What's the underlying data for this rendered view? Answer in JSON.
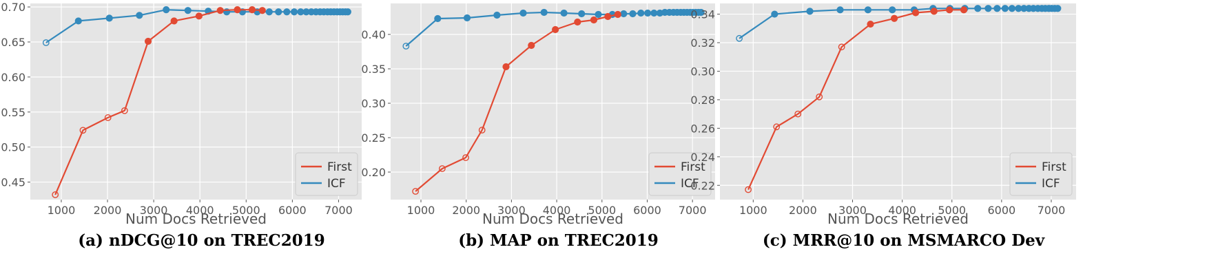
{
  "chart_data": [
    {
      "type": "line",
      "caption": "(a) nDCG@10 on TREC2019",
      "xlabel": "Num Docs Retrieved",
      "ylabel": "",
      "xlim": [
        330,
        7500
      ],
      "ylim": [
        0.425,
        0.705
      ],
      "xticks": [
        1000,
        2000,
        3000,
        4000,
        5000,
        6000,
        7000
      ],
      "yticks": [
        0.45,
        0.5,
        0.55,
        0.6,
        0.65,
        0.7
      ],
      "ytick_labels": [
        "0.45",
        "0.50",
        "0.55",
        "0.60",
        "0.65",
        "0.70"
      ],
      "legend": {
        "position": "lower-right",
        "entries": [
          "First",
          "ICF"
        ]
      },
      "series": [
        {
          "name": "First",
          "color": "#E24A33",
          "x": [
            870,
            1470,
            2010,
            2370,
            2880,
            3440,
            3980,
            4440,
            4810,
            5130,
            5350
          ],
          "y": [
            0.432,
            0.524,
            0.542,
            0.552,
            0.651,
            0.68,
            0.687,
            0.695,
            0.696,
            0.696,
            0.695
          ],
          "filled": [
            false,
            false,
            false,
            false,
            true,
            true,
            true,
            true,
            true,
            true,
            true
          ]
        },
        {
          "name": "ICF",
          "color": "#348ABD",
          "x": [
            670,
            1370,
            2040,
            2690,
            3270,
            3740,
            4180,
            4580,
            4920,
            5240,
            5500,
            5700,
            5880,
            6040,
            6180,
            6300,
            6410,
            6510,
            6600,
            6680,
            6760,
            6830,
            6900,
            6970,
            7030,
            7090,
            7150,
            7200
          ],
          "y": [
            0.649,
            0.68,
            0.684,
            0.688,
            0.696,
            0.695,
            0.694,
            0.693,
            0.693,
            0.693,
            0.693,
            0.693,
            0.693,
            0.693,
            0.693,
            0.693,
            0.693,
            0.693,
            0.693,
            0.693,
            0.693,
            0.693,
            0.693,
            0.693,
            0.693,
            0.693,
            0.693,
            0.693
          ],
          "filled": [
            false,
            true,
            true,
            true,
            true,
            true,
            true,
            true,
            true,
            true,
            true,
            true,
            true,
            true,
            true,
            true,
            true,
            true,
            true,
            true,
            true,
            true,
            true,
            true,
            true,
            true,
            true,
            true
          ]
        }
      ]
    },
    {
      "type": "line",
      "caption": "(b) MAP on TREC2019",
      "xlabel": "Num Docs Retrieved",
      "ylabel": "",
      "xlim": [
        330,
        7500
      ],
      "ylim": [
        0.16,
        0.445
      ],
      "xticks": [
        1000,
        2000,
        3000,
        4000,
        5000,
        6000,
        7000
      ],
      "yticks": [
        0.2,
        0.25,
        0.3,
        0.35,
        0.4
      ],
      "ytick_labels": [
        "0.20",
        "0.25",
        "0.30",
        "0.35",
        "0.40"
      ],
      "legend": {
        "position": "lower-right",
        "entries": [
          "First",
          "ICF"
        ]
      },
      "series": [
        {
          "name": "First",
          "color": "#E24A33",
          "x": [
            880,
            1470,
            1990,
            2350,
            2880,
            3440,
            3970,
            4460,
            4820,
            5130,
            5350
          ],
          "y": [
            0.172,
            0.205,
            0.221,
            0.261,
            0.353,
            0.384,
            0.407,
            0.418,
            0.421,
            0.426,
            0.429
          ],
          "filled": [
            false,
            false,
            false,
            false,
            true,
            true,
            true,
            true,
            true,
            true,
            true
          ]
        },
        {
          "name": "ICF",
          "color": "#348ABD",
          "x": [
            670,
            1370,
            2020,
            2680,
            3260,
            3720,
            4160,
            4550,
            4920,
            5230,
            5480,
            5680,
            5860,
            6010,
            6150,
            6280,
            6390,
            6490,
            6580,
            6660,
            6740,
            6810,
            6880,
            6950,
            7010,
            7070,
            7130,
            7190
          ],
          "y": [
            0.383,
            0.423,
            0.424,
            0.428,
            0.431,
            0.432,
            0.431,
            0.43,
            0.429,
            0.429,
            0.43,
            0.43,
            0.431,
            0.431,
            0.431,
            0.431,
            0.432,
            0.432,
            0.432,
            0.432,
            0.432,
            0.432,
            0.432,
            0.432,
            0.432,
            0.432,
            0.432,
            0.432
          ],
          "filled": [
            false,
            true,
            true,
            true,
            true,
            true,
            true,
            true,
            true,
            true,
            true,
            true,
            true,
            true,
            true,
            true,
            true,
            true,
            true,
            true,
            true,
            true,
            true,
            true,
            true,
            true,
            true,
            true
          ]
        }
      ]
    },
    {
      "type": "line",
      "caption": "(c) MRR@10 on MSMARCO Dev",
      "xlabel": "Num Docs Retrieved",
      "ylabel": "",
      "xlim": [
        330,
        7500
      ],
      "ylim": [
        0.21,
        0.3475
      ],
      "xticks": [
        1000,
        2000,
        3000,
        4000,
        5000,
        6000,
        7000
      ],
      "yticks": [
        0.22,
        0.24,
        0.26,
        0.28,
        0.3,
        0.32,
        0.34
      ],
      "ytick_labels": [
        "0.22",
        "0.24",
        "0.26",
        "0.28",
        "0.30",
        "0.32",
        "0.34"
      ],
      "legend": {
        "position": "lower-right",
        "entries": [
          "First",
          "ICF"
        ]
      },
      "series": [
        {
          "name": "First",
          "color": "#E24A33",
          "x": [
            900,
            1470,
            1900,
            2330,
            2780,
            3360,
            3840,
            4270,
            4640,
            4950,
            5240
          ],
          "y": [
            0.217,
            0.261,
            0.27,
            0.282,
            0.317,
            0.333,
            0.337,
            0.341,
            0.342,
            0.343,
            0.343
          ],
          "filled": [
            false,
            false,
            false,
            false,
            false,
            true,
            true,
            true,
            true,
            true,
            true
          ]
        },
        {
          "name": "ICF",
          "color": "#348ABD",
          "x": [
            720,
            1430,
            2140,
            2750,
            3310,
            3800,
            4240,
            4620,
            4960,
            5260,
            5520,
            5730,
            5910,
            6070,
            6210,
            6340,
            6450,
            6550,
            6640,
            6730,
            6810,
            6880,
            6950,
            7010,
            7070,
            7130
          ],
          "y": [
            0.323,
            0.34,
            0.342,
            0.343,
            0.343,
            0.343,
            0.343,
            0.344,
            0.344,
            0.344,
            0.344,
            0.344,
            0.344,
            0.344,
            0.344,
            0.344,
            0.344,
            0.344,
            0.344,
            0.344,
            0.344,
            0.344,
            0.344,
            0.344,
            0.344,
            0.344
          ],
          "filled": [
            false,
            true,
            true,
            true,
            true,
            true,
            true,
            true,
            true,
            true,
            true,
            true,
            true,
            true,
            true,
            true,
            true,
            true,
            true,
            true,
            true,
            true,
            true,
            true,
            true,
            true
          ]
        }
      ]
    }
  ]
}
